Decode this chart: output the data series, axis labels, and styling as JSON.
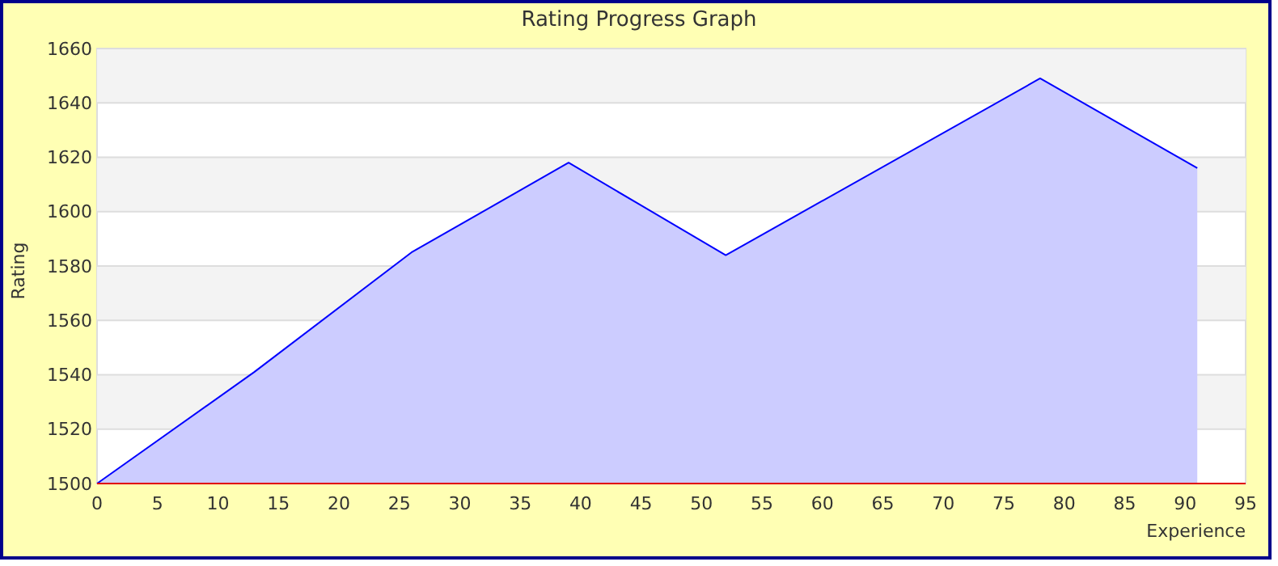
{
  "chart_data": {
    "type": "area",
    "title": "Rating Progress Graph",
    "xlabel": "Experience",
    "ylabel": "Rating",
    "x": [
      0,
      13,
      26,
      39,
      52,
      78,
      91
    ],
    "series": [
      {
        "color": "#0000ff",
        "values": [
          1500,
          1541,
          1585,
          1618,
          1584,
          1649,
          1616
        ]
      }
    ],
    "xlim": [
      0,
      95
    ],
    "xticks": [
      0,
      5,
      10,
      15,
      20,
      25,
      30,
      35,
      40,
      45,
      50,
      55,
      60,
      65,
      70,
      75,
      80,
      85,
      90,
      95
    ],
    "ylim": [
      1500,
      1660
    ],
    "yticks": [
      1500,
      1520,
      1540,
      1560,
      1580,
      1600,
      1620,
      1640,
      1660
    ],
    "grid": "y"
  }
}
